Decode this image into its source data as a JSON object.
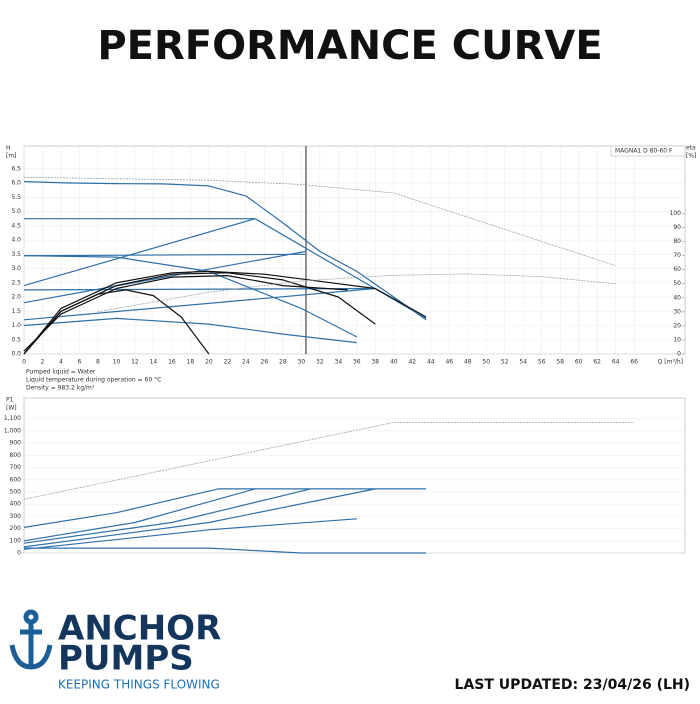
{
  "title": "PERFORMANCE CURVE",
  "chart_data": [
    {
      "type": "line",
      "model": "MAGNA1 D 80-60 F",
      "y_label": [
        "H",
        "[m]"
      ],
      "y2_label": [
        "eta",
        "[%]"
      ],
      "x_label": "Q [m³/h]",
      "grid": true,
      "duty_x": 30.5,
      "xlim": [
        0,
        71.5
      ],
      "xticks": [
        0,
        2,
        4,
        6,
        8,
        10,
        12,
        14,
        16,
        18,
        20,
        22,
        24,
        26,
        28,
        30,
        32,
        34,
        36,
        38,
        40,
        42,
        44,
        46,
        48,
        50,
        52,
        54,
        56,
        58,
        60,
        62,
        64,
        66
      ],
      "ylim": [
        0,
        7.3
      ],
      "yticks": [
        {
          "value": 0,
          "label": "0.0"
        },
        0.5,
        {
          "value": 1,
          "label": "1.0"
        },
        1.5,
        {
          "value": 2,
          "label": "2.0"
        },
        2.5,
        {
          "value": 3,
          "label": "3.0"
        },
        3.5,
        {
          "value": 4,
          "label": "4.0"
        },
        4.5,
        {
          "value": 5,
          "label": "5.0"
        },
        5.5,
        {
          "value": 6,
          "label": "6.0"
        },
        6.5
      ],
      "y2lim": [
        0,
        148
      ],
      "y2ticks": [
        0,
        10,
        20,
        30,
        40,
        50,
        60,
        70,
        80,
        90,
        100
      ],
      "series": [
        {
          "color": "#2f6fa8",
          "x": [
            0,
            5,
            10,
            15,
            20,
            24,
            28,
            32,
            36,
            40,
            43.5
          ],
          "values": [
            6.05,
            6.0,
            5.98,
            5.97,
            5.9,
            5.55,
            4.6,
            3.6,
            2.9,
            2.0,
            1.2
          ]
        },
        {
          "color": "#2f6fa8",
          "x": [
            0,
            25
          ],
          "values": [
            4.75,
            4.75
          ]
        },
        {
          "color": "#2f6fa8",
          "x": [
            0,
            25
          ],
          "values": [
            2.4,
            4.75
          ]
        },
        {
          "color": "#2f6fa8",
          "x": [
            25,
            43.5
          ],
          "values": [
            4.75,
            1.25
          ]
        },
        {
          "color": "#2f6fa8",
          "x": [
            0,
            30.5
          ],
          "values": [
            3.45,
            3.5
          ]
        },
        {
          "color": "#2f6fa8",
          "x": [
            0,
            30.5
          ],
          "values": [
            1.8,
            3.6
          ]
        },
        {
          "color": "#2f6fa8",
          "x": [
            0,
            10,
            20,
            30,
            36
          ],
          "values": [
            3.45,
            3.4,
            2.9,
            1.6,
            0.6
          ]
        },
        {
          "color": "#2f6fa8",
          "x": [
            0,
            38
          ],
          "values": [
            2.25,
            2.3
          ]
        },
        {
          "color": "#2f6fa8",
          "x": [
            0,
            38
          ],
          "values": [
            1.2,
            2.3
          ]
        },
        {
          "color": "#2f6fa8",
          "x": [
            0,
            10,
            20,
            28,
            36
          ],
          "values": [
            1.0,
            1.25,
            1.05,
            0.7,
            0.4
          ]
        },
        {
          "color": "#111111",
          "x": [
            0,
            4,
            10,
            16,
            20,
            26,
            32,
            38,
            43.5
          ],
          "values": [
            0,
            1.6,
            2.5,
            2.85,
            2.9,
            2.8,
            2.55,
            2.3,
            1.3
          ]
        },
        {
          "color": "#111111",
          "x": [
            0,
            4,
            10,
            16,
            22,
            28,
            34,
            38
          ],
          "values": [
            0,
            1.5,
            2.4,
            2.8,
            2.85,
            2.6,
            2.0,
            1.05
          ]
        },
        {
          "color": "#111111",
          "x": [
            0,
            4,
            10,
            16,
            22,
            28,
            35
          ],
          "values": [
            0.1,
            1.4,
            2.3,
            2.7,
            2.75,
            2.4,
            2.25
          ]
        },
        {
          "color": "#111111",
          "x": [
            0,
            4,
            8,
            11,
            14,
            17,
            20
          ],
          "values": [
            0,
            1.5,
            2.1,
            2.25,
            2.05,
            1.3,
            0
          ]
        },
        {
          "color": "#9aa3ad",
          "x": [
            0,
            20,
            30,
            40,
            64
          ],
          "values": [
            6.2,
            6.1,
            5.95,
            5.65,
            3.1
          ]
        },
        {
          "color": "#9aa3ad",
          "axis": "y2",
          "x": [
            8,
            20,
            30,
            40,
            48,
            56,
            64
          ],
          "values": [
            30,
            44,
            52,
            56,
            57,
            55,
            50
          ]
        }
      ]
    },
    {
      "type": "line",
      "y_label": [
        "P1",
        "[W]"
      ],
      "grid": true,
      "xlim": [
        0,
        71.5
      ],
      "ylim": [
        0,
        1270
      ],
      "yticks": [
        0,
        100,
        200,
        300,
        400,
        500,
        600,
        700,
        800,
        900,
        {
          "value": 1000,
          "label": "1,000"
        },
        {
          "value": 1100,
          "label": "1,100"
        }
      ],
      "series": [
        {
          "color": "#9aa3ad",
          "x": [
            0,
            40,
            66
          ],
          "values": [
            440,
            1070,
            1070
          ]
        },
        {
          "color": "#2f6fa8",
          "x": [
            0,
            10,
            21,
            43.5
          ],
          "values": [
            210,
            330,
            525,
            525
          ]
        },
        {
          "color": "#2f6fa8",
          "x": [
            0,
            12,
            25
          ],
          "values": [
            100,
            250,
            525
          ]
        },
        {
          "color": "#2f6fa8",
          "x": [
            0,
            16,
            31
          ],
          "values": [
            80,
            250,
            525
          ]
        },
        {
          "color": "#2f6fa8",
          "x": [
            0,
            20,
            38
          ],
          "values": [
            50,
            250,
            525
          ]
        },
        {
          "color": "#2f6fa8",
          "x": [
            0,
            20,
            36
          ],
          "values": [
            30,
            190,
            280
          ]
        },
        {
          "color": "#2f6fa8",
          "x": [
            0,
            20,
            30,
            43.5
          ],
          "values": [
            40,
            40,
            0,
            0
          ]
        }
      ]
    }
  ],
  "notes": [
    "Pumped liquid = Water",
    "Liquid temperature during operation = 60 °C",
    "Density = 983.2 kg/m³"
  ],
  "logo": {
    "line1": "ANCHOR",
    "line2": "PUMPS",
    "tagline": "KEEPING THINGS FLOWING"
  },
  "footer": "LAST UPDATED: 23/04/26 (LH)"
}
